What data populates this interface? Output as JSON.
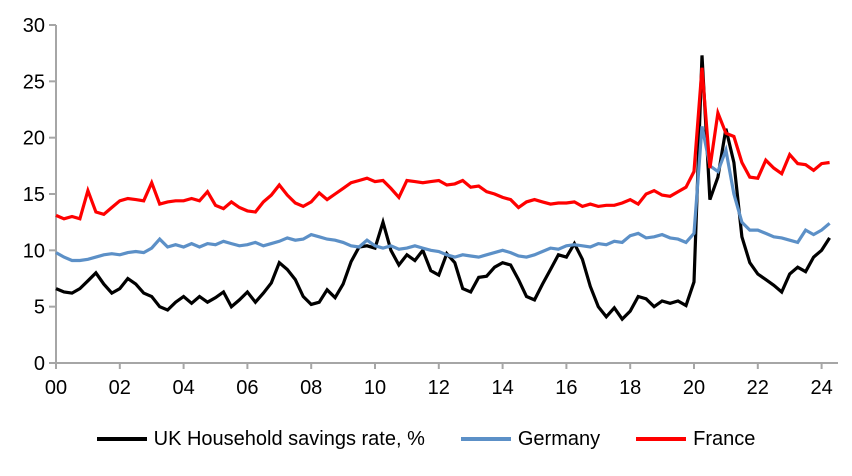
{
  "chart_data": {
    "type": "line",
    "title": "",
    "grid": false,
    "legend_position": "bottom",
    "background_color": "#FFFFFF",
    "axis_color": "#A6A6A6",
    "text_color": "#000000",
    "x_axis": {
      "tick_labels": [
        "00",
        "02",
        "04",
        "06",
        "08",
        "10",
        "12",
        "14",
        "16",
        "18",
        "20",
        "22",
        "24"
      ],
      "tick_years": [
        0,
        2,
        4,
        6,
        8,
        10,
        12,
        14,
        16,
        18,
        20,
        22,
        24
      ],
      "start_year": 2000,
      "end_year": 2024.25,
      "frequency": "quarterly"
    },
    "y_axis": {
      "ticks": [
        0,
        5,
        10,
        15,
        20,
        25,
        30
      ],
      "range": [
        0,
        30
      ]
    },
    "series": [
      {
        "name": "UK Household savings rate, %",
        "color": "#000000",
        "values": [
          6.6,
          6.3,
          6.2,
          6.6,
          7.3,
          8.0,
          7.0,
          6.2,
          6.6,
          7.5,
          7.0,
          6.2,
          5.9,
          5.0,
          4.7,
          5.4,
          5.9,
          5.3,
          5.9,
          5.4,
          5.8,
          6.3,
          5.0,
          5.6,
          6.3,
          5.4,
          6.2,
          7.1,
          8.9,
          8.3,
          7.4,
          5.9,
          5.2,
          5.4,
          6.5,
          5.8,
          7.0,
          9.0,
          10.3,
          10.4,
          10.2,
          12.5,
          10.0,
          8.7,
          9.6,
          9.1,
          10.0,
          8.2,
          7.8,
          9.7,
          8.9,
          6.6,
          6.3,
          7.6,
          7.7,
          8.5,
          8.9,
          8.7,
          7.4,
          5.9,
          5.6,
          7.0,
          8.3,
          9.6,
          9.4,
          10.6,
          9.2,
          6.8,
          5.0,
          4.1,
          4.9,
          3.9,
          4.6,
          5.9,
          5.7,
          5.0,
          5.5,
          5.3,
          5.5,
          5.1,
          7.2,
          27.3,
          14.5,
          16.5,
          20.8,
          17.8,
          11.2,
          8.9,
          7.9,
          7.4,
          6.9,
          6.3,
          7.9,
          8.5,
          8.1,
          9.4,
          10.0,
          11.1
        ]
      },
      {
        "name": "Germany",
        "color": "#5C90C7",
        "values": [
          9.8,
          9.4,
          9.1,
          9.1,
          9.2,
          9.4,
          9.6,
          9.7,
          9.6,
          9.8,
          9.9,
          9.8,
          10.2,
          11.0,
          10.3,
          10.5,
          10.3,
          10.6,
          10.3,
          10.6,
          10.5,
          10.8,
          10.6,
          10.4,
          10.5,
          10.7,
          10.4,
          10.6,
          10.8,
          11.1,
          10.9,
          11.0,
          11.4,
          11.2,
          11.0,
          10.9,
          10.7,
          10.4,
          10.3,
          10.9,
          10.4,
          10.2,
          10.4,
          10.1,
          10.2,
          10.4,
          10.2,
          10.0,
          9.9,
          9.6,
          9.4,
          9.6,
          9.5,
          9.4,
          9.6,
          9.8,
          10.0,
          9.8,
          9.5,
          9.4,
          9.6,
          9.9,
          10.2,
          10.1,
          10.4,
          10.5,
          10.4,
          10.3,
          10.6,
          10.5,
          10.8,
          10.7,
          11.3,
          11.5,
          11.1,
          11.2,
          11.4,
          11.1,
          11.0,
          10.7,
          11.5,
          21.0,
          17.5,
          17.0,
          18.9,
          15.0,
          12.5,
          11.8,
          11.8,
          11.5,
          11.2,
          11.1,
          10.9,
          10.7,
          11.8,
          11.4,
          11.8,
          12.4
        ]
      },
      {
        "name": "France",
        "color": "#FF0000",
        "values": [
          13.1,
          12.8,
          13.0,
          12.8,
          15.3,
          13.4,
          13.2,
          13.8,
          14.4,
          14.6,
          14.5,
          14.4,
          16.0,
          14.1,
          14.3,
          14.4,
          14.4,
          14.6,
          14.4,
          15.2,
          14.0,
          13.7,
          14.3,
          13.8,
          13.5,
          13.4,
          14.3,
          14.9,
          15.8,
          14.9,
          14.2,
          13.9,
          14.3,
          15.1,
          14.5,
          15.0,
          15.5,
          16.0,
          16.2,
          16.4,
          16.1,
          16.2,
          15.5,
          14.7,
          16.2,
          16.1,
          16.0,
          16.1,
          16.2,
          15.8,
          15.9,
          16.2,
          15.6,
          15.7,
          15.2,
          15.0,
          14.7,
          14.5,
          13.8,
          14.3,
          14.5,
          14.3,
          14.1,
          14.2,
          14.2,
          14.3,
          13.9,
          14.1,
          13.9,
          14.0,
          14.0,
          14.2,
          14.5,
          14.1,
          15.0,
          15.3,
          14.9,
          14.8,
          15.2,
          15.6,
          17.0,
          26.2,
          17.3,
          22.2,
          20.4,
          20.1,
          17.8,
          16.5,
          16.4,
          18.0,
          17.3,
          16.8,
          18.5,
          17.7,
          17.6,
          17.1,
          17.7,
          17.8
        ]
      }
    ]
  },
  "legend": {
    "items": [
      {
        "label": "UK Household savings rate, %"
      },
      {
        "label": "Germany"
      },
      {
        "label": "France"
      }
    ]
  }
}
